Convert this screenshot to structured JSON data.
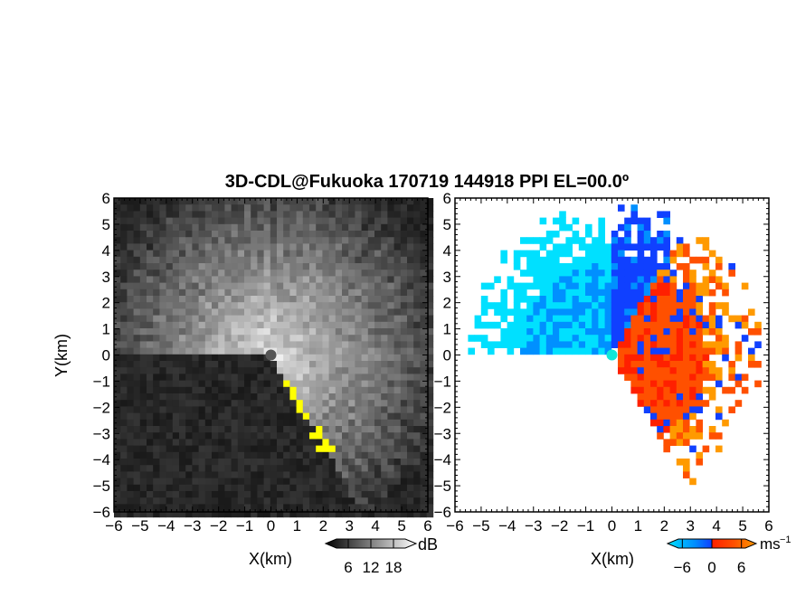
{
  "title": "3D-CDL@Fukuoka 170719 144918 PPI EL=00.0º",
  "chart_data": [
    {
      "type": "heatmap",
      "panel": "left",
      "quantity": "SNR",
      "xlabel": "X(km)",
      "ylabel": "Y(km)",
      "xlim": [
        -6,
        6
      ],
      "ylim": [
        -6,
        6
      ],
      "xticks": [
        "−6",
        "−5",
        "−4",
        "−3",
        "−2",
        "−1",
        "0",
        "1",
        "2",
        "3",
        "4",
        "5",
        "6"
      ],
      "yticks": [
        "6",
        "5",
        "4",
        "3",
        "2",
        "1",
        "0",
        "−1",
        "−2",
        "−3",
        "−4",
        "−5",
        "−6"
      ],
      "colorbar": {
        "unit": "dB",
        "ticks": [
          "6",
          "12",
          "18"
        ],
        "range": [
          0,
          24
        ],
        "scale": "grayscale"
      },
      "highlight_color": "#ffff00",
      "blocked_sector_deg": [
        180,
        300
      ]
    },
    {
      "type": "heatmap",
      "panel": "right",
      "quantity": "Doppler velocity",
      "xlabel": "X(km)",
      "ylabel": "",
      "xlim": [
        -6,
        6
      ],
      "ylim": [
        -6,
        6
      ],
      "xticks": [
        "−6",
        "−5",
        "−4",
        "−3",
        "−2",
        "−1",
        "0",
        "1",
        "2",
        "3",
        "4",
        "5",
        "6"
      ],
      "yticks": [
        "6",
        "5",
        "4",
        "3",
        "2",
        "1",
        "0",
        "−1",
        "−2",
        "−3",
        "−4",
        "−5",
        "−6"
      ],
      "colorbar": {
        "unit": "ms",
        "unit_sup": "−1",
        "ticks": [
          "−6",
          "0",
          "6"
        ],
        "range": [
          -9,
          9
        ],
        "colors": [
          "#00e0ff",
          "#0090ff",
          "#1040ff",
          "#ff2000",
          "#ff5000",
          "#ff9a00"
        ]
      }
    }
  ]
}
